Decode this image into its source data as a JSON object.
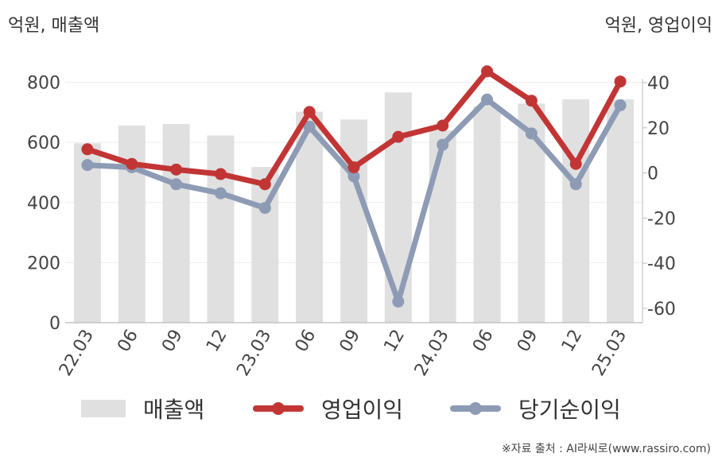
{
  "units": {
    "left": "억원, 매출액",
    "right": "억원, 영업이익"
  },
  "source": "※자료 출처 : AI라씨로(www.rassiro.com)",
  "chart_data": {
    "type": "bar",
    "categories": [
      "22.03",
      "06",
      "09",
      "12",
      "23.03",
      "06",
      "09",
      "12",
      "24.03",
      "06",
      "09",
      "12",
      "25.03"
    ],
    "series": [
      {
        "name": "매출액",
        "type": "bar",
        "axis": "left",
        "color": "#e0e0e0",
        "values": [
          597,
          656,
          661,
          623,
          518,
          702,
          676,
          766,
          640,
          721,
          729,
          743,
          743
        ]
      },
      {
        "name": "영업이익",
        "type": "line",
        "axis": "right",
        "color": "#c23535",
        "values": [
          10.5,
          4,
          1.5,
          -0.5,
          -5,
          27,
          2.5,
          16,
          21,
          45,
          32,
          4,
          40.5
        ]
      },
      {
        "name": "당기순이익",
        "type": "line",
        "axis": "right",
        "color": "#8d9bb5",
        "values": [
          3.5,
          2.5,
          -5,
          -9,
          -15.5,
          20.5,
          -1.5,
          -57,
          12.5,
          32.5,
          17.5,
          -5,
          30
        ]
      }
    ],
    "y_left": {
      "min": 0,
      "max": 800,
      "ticks": [
        "0",
        "200",
        "400",
        "600",
        "800"
      ]
    },
    "y_right": {
      "min": -60,
      "max": 40,
      "ticks": [
        "-60",
        "-40",
        "-20",
        "0",
        "20",
        "40"
      ]
    },
    "grid": true,
    "legend_position": "bottom"
  }
}
